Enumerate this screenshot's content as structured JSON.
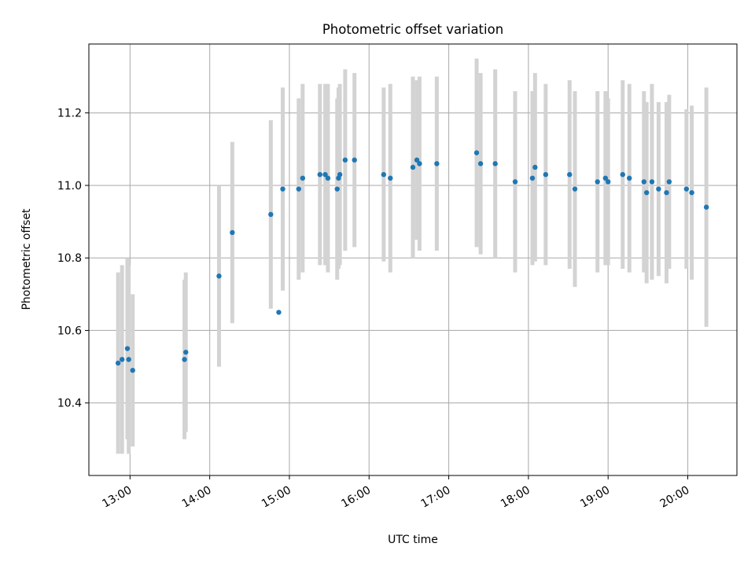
{
  "chart_data": {
    "type": "scatter",
    "title": "Photometric offset variation",
    "xlabel": "UTC time",
    "ylabel": "Photometric offset",
    "x_axis_type": "time",
    "xlim": [
      "12:29",
      "20:37"
    ],
    "ylim": [
      10.2,
      11.39
    ],
    "xticks": [
      "13:00",
      "14:00",
      "15:00",
      "16:00",
      "17:00",
      "18:00",
      "19:00",
      "20:00"
    ],
    "yticks": [
      10.4,
      10.6,
      10.8,
      11.0,
      11.2
    ],
    "grid": true,
    "colors": {
      "point": "#1f77b4",
      "errorbar": "#d3d3d3",
      "grid": "#b0b0b0"
    },
    "series": [
      {
        "points": [
          {
            "x": "12:51",
            "y": 10.51,
            "yerr": 0.25
          },
          {
            "x": "12:54",
            "y": 10.52,
            "yerr": 0.26
          },
          {
            "x": "12:58",
            "y": 10.55,
            "yerr": 0.25
          },
          {
            "x": "12:59",
            "y": 10.52,
            "yerr": 0.26
          },
          {
            "x": "13:02",
            "y": 10.49,
            "yerr": 0.21
          },
          {
            "x": "13:41",
            "y": 10.52,
            "yerr": 0.22
          },
          {
            "x": "13:42",
            "y": 10.54,
            "yerr": 0.22
          },
          {
            "x": "14:07",
            "y": 10.75,
            "yerr": 0.25
          },
          {
            "x": "14:17",
            "y": 10.87,
            "yerr": 0.25
          },
          {
            "x": "14:46",
            "y": 10.92,
            "yerr": 0.26
          },
          {
            "x": "14:52",
            "y": 10.65
          },
          {
            "x": "14:55",
            "y": 10.99,
            "yerr": 0.28
          },
          {
            "x": "15:07",
            "y": 10.99,
            "yerr": 0.25
          },
          {
            "x": "15:10",
            "y": 11.02,
            "yerr": 0.26
          },
          {
            "x": "15:23",
            "y": 11.03,
            "yerr": 0.25
          },
          {
            "x": "15:27",
            "y": 11.03,
            "yerr": 0.25
          },
          {
            "x": "15:29",
            "y": 11.02,
            "yerr": 0.26
          },
          {
            "x": "15:36",
            "y": 10.99,
            "yerr": 0.25
          },
          {
            "x": "15:37",
            "y": 11.02,
            "yerr": 0.25
          },
          {
            "x": "15:38",
            "y": 11.03,
            "yerr": 0.25
          },
          {
            "x": "15:42",
            "y": 11.07,
            "yerr": 0.25
          },
          {
            "x": "15:49",
            "y": 11.07,
            "yerr": 0.24
          },
          {
            "x": "16:11",
            "y": 11.03,
            "yerr": 0.24
          },
          {
            "x": "16:16",
            "y": 11.02,
            "yerr": 0.26
          },
          {
            "x": "16:33",
            "y": 11.05,
            "yerr": 0.25
          },
          {
            "x": "16:36",
            "y": 11.07,
            "yerr": 0.22
          },
          {
            "x": "16:38",
            "y": 11.06,
            "yerr": 0.24
          },
          {
            "x": "16:51",
            "y": 11.06,
            "yerr": 0.24
          },
          {
            "x": "17:21",
            "y": 11.09,
            "yerr": 0.26
          },
          {
            "x": "17:24",
            "y": 11.06,
            "yerr": 0.25
          },
          {
            "x": "17:35",
            "y": 11.06,
            "yerr": 0.26
          },
          {
            "x": "17:50",
            "y": 11.01,
            "yerr": 0.25
          },
          {
            "x": "18:03",
            "y": 11.02,
            "yerr": 0.24
          },
          {
            "x": "18:05",
            "y": 11.05,
            "yerr": 0.26
          },
          {
            "x": "18:13",
            "y": 11.03,
            "yerr": 0.25
          },
          {
            "x": "18:31",
            "y": 11.03,
            "yerr": 0.26
          },
          {
            "x": "18:35",
            "y": 10.99,
            "yerr": 0.27
          },
          {
            "x": "18:52",
            "y": 11.01,
            "yerr": 0.25
          },
          {
            "x": "18:58",
            "y": 11.02,
            "yerr": 0.24
          },
          {
            "x": "19:00",
            "y": 11.01,
            "yerr": 0.23
          },
          {
            "x": "19:11",
            "y": 11.03,
            "yerr": 0.26
          },
          {
            "x": "19:16",
            "y": 11.02,
            "yerr": 0.26
          },
          {
            "x": "19:27",
            "y": 11.01,
            "yerr": 0.25
          },
          {
            "x": "19:29",
            "y": 10.98,
            "yerr": 0.25
          },
          {
            "x": "19:33",
            "y": 11.01,
            "yerr": 0.27
          },
          {
            "x": "19:38",
            "y": 10.99,
            "yerr": 0.24
          },
          {
            "x": "19:44",
            "y": 10.98,
            "yerr": 0.25
          },
          {
            "x": "19:46",
            "y": 11.01,
            "yerr": 0.24
          },
          {
            "x": "19:59",
            "y": 10.99,
            "yerr": 0.22
          },
          {
            "x": "20:03",
            "y": 10.98,
            "yerr": 0.24
          },
          {
            "x": "20:14",
            "y": 10.94,
            "yerr": 0.33
          }
        ]
      }
    ]
  }
}
